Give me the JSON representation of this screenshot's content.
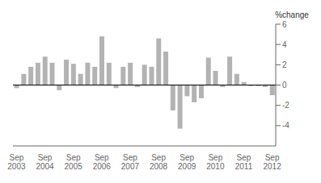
{
  "chart_data": {
    "type": "bar",
    "ylabel": "%change",
    "categories": [
      "Sep\n2003",
      null,
      null,
      null,
      "Sep\n2004",
      null,
      null,
      null,
      "Sep\n2005",
      null,
      null,
      null,
      "Sep\n2006",
      null,
      null,
      null,
      "Sep\n2007",
      null,
      null,
      null,
      "Sep\n2008",
      null,
      null,
      null,
      "Sep\n2009",
      null,
      null,
      null,
      "Sep\n2010",
      null,
      null,
      null,
      "Sep\n2011",
      null,
      null,
      null,
      "Sep\n2012"
    ],
    "values": [
      -0.3,
      1.1,
      1.8,
      2.2,
      2.8,
      2.2,
      -0.5,
      2.5,
      2.1,
      1.1,
      2.2,
      1.8,
      4.8,
      2.2,
      -0.3,
      1.8,
      2.2,
      -0.2,
      2.0,
      1.8,
      4.6,
      3.3,
      -2.5,
      -4.3,
      -1.1,
      -1.7,
      -1.3,
      2.7,
      1.4,
      -0.2,
      2.8,
      1.1,
      0.3,
      -0.1,
      -0.1,
      -0.2,
      -1.0
    ],
    "color": "#b3b3b3",
    "ylim": [
      -6,
      6
    ],
    "yticks": [
      -4,
      -2,
      0,
      2,
      4,
      6
    ],
    "grid": false
  }
}
